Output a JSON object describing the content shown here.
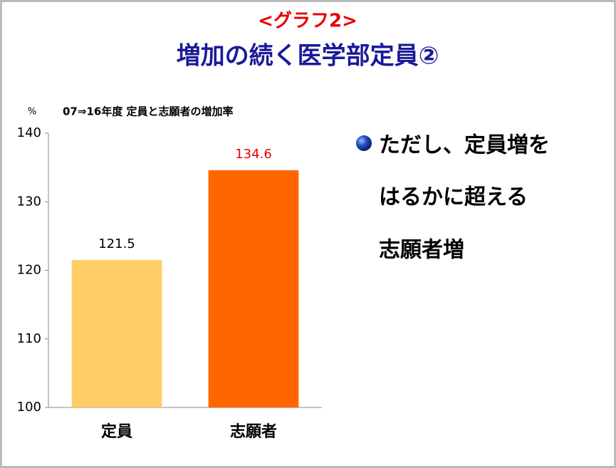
{
  "slide": {
    "label": "<グラフ2>",
    "title": "増加の続く医学部定員②",
    "bullet": [
      "ただし、定員増を",
      "はるかに超える",
      "志願者増"
    ]
  },
  "chart_data": {
    "type": "bar",
    "title": "07⇒16年度 定員と志願者の増加率",
    "y_label": "%",
    "categories": [
      "定員",
      "志願者"
    ],
    "values": [
      121.5,
      134.6
    ],
    "colors": [
      "#ffcc66",
      "#ff6600"
    ],
    "value_label_colors": [
      "#000000",
      "#e60000"
    ],
    "ylim": [
      100,
      140
    ],
    "yticks": [
      100,
      110,
      120,
      130,
      140
    ],
    "grid": false
  }
}
